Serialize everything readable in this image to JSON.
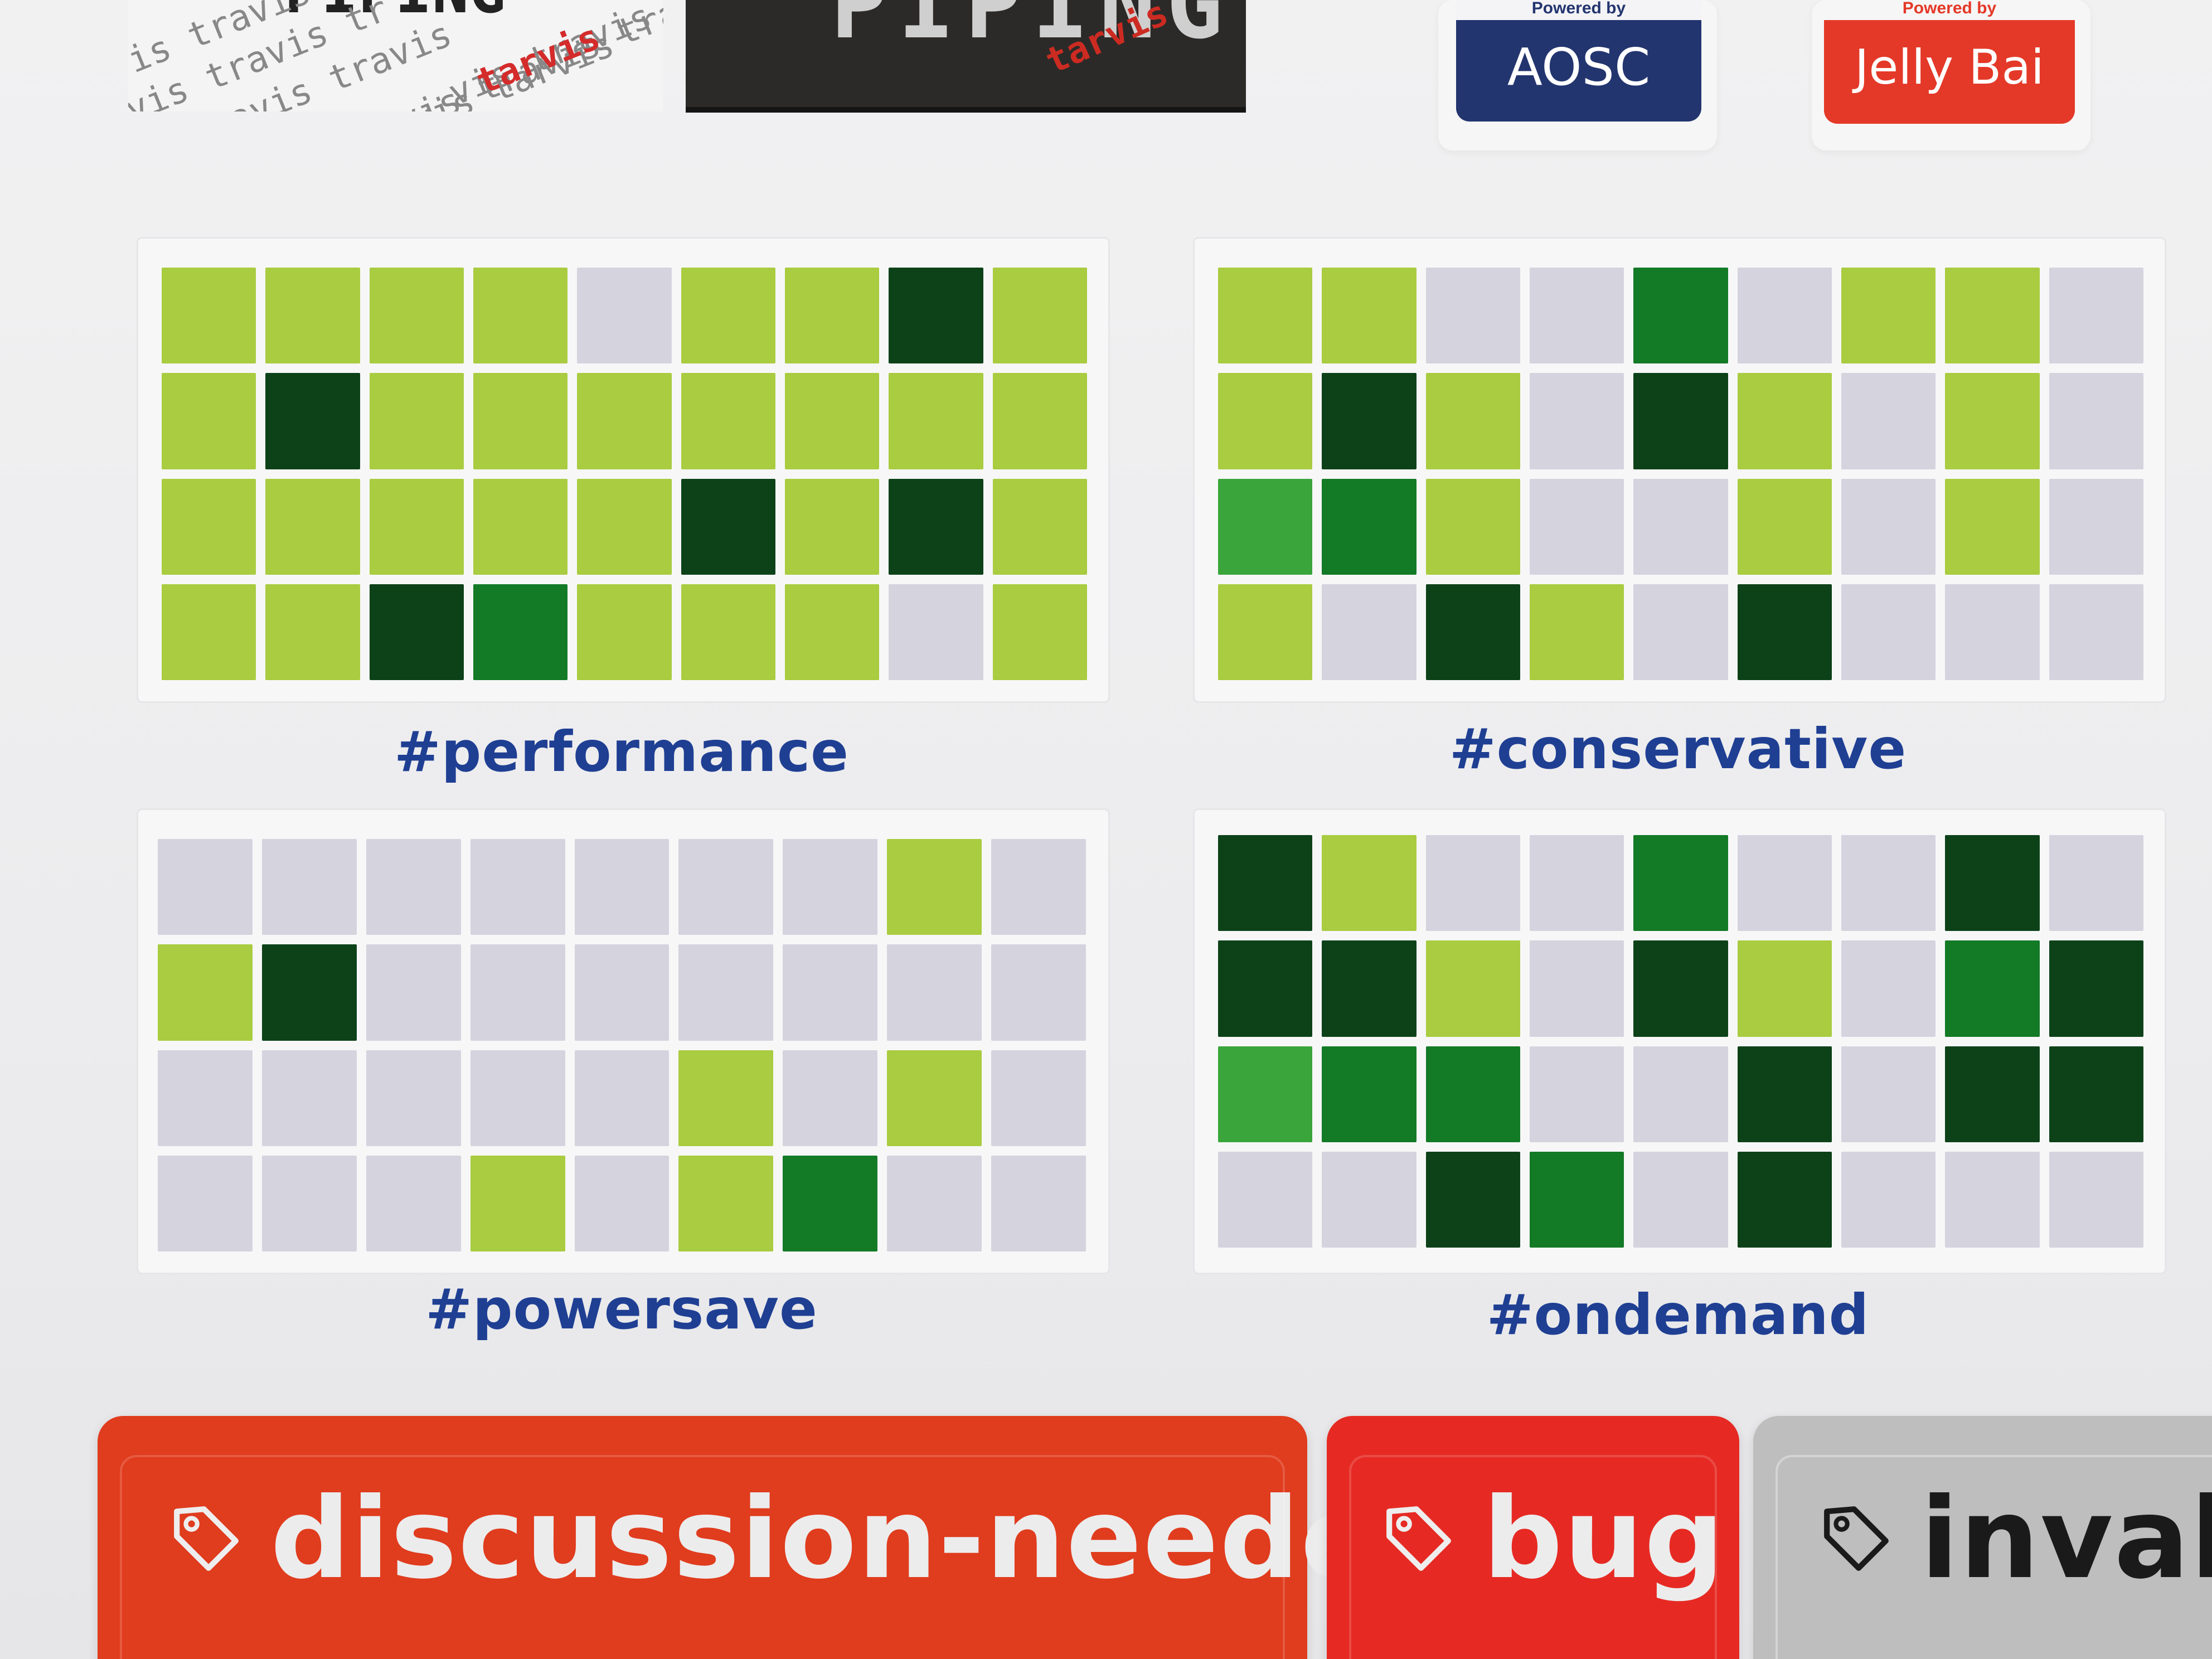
{
  "top_strip": {
    "travis_tile": {
      "words": [
        "is travis",
        "vis travis tr",
        "c travis travis",
        "avis travis tarvis",
        "avis travis tra",
        "vis travis tr"
      ],
      "accent_word": "tarvis",
      "heading_fragment": "PIPING"
    },
    "piping_tile": {
      "title_fragment": "PIPING",
      "accent_word": "tarvis"
    },
    "badges": [
      {
        "powered_by": "Powered by",
        "name": "AOSC",
        "color": "#23356f"
      },
      {
        "powered_by": "Powered by",
        "name": "Jelly Bai",
        "color": "#e43928"
      }
    ]
  },
  "levels": {
    "0": "#d5d3de",
    "1": "#a9cc40",
    "2": "#3aa53a",
    "3": "#137a26",
    "4": "#0d4219"
  },
  "heatmaps": [
    {
      "tag": "#performance",
      "rows": [
        [
          1,
          1,
          1,
          1,
          0,
          1,
          1,
          4,
          1
        ],
        [
          1,
          4,
          1,
          1,
          1,
          1,
          1,
          1,
          1
        ],
        [
          1,
          1,
          1,
          1,
          1,
          4,
          1,
          4,
          1
        ],
        [
          1,
          1,
          4,
          3,
          1,
          1,
          1,
          0,
          1
        ]
      ]
    },
    {
      "tag": "#conservative",
      "rows": [
        [
          1,
          1,
          0,
          0,
          3,
          0,
          1,
          1,
          0
        ],
        [
          1,
          4,
          1,
          0,
          4,
          1,
          0,
          1,
          0
        ],
        [
          2,
          3,
          1,
          0,
          0,
          1,
          0,
          1,
          0
        ],
        [
          1,
          0,
          4,
          1,
          0,
          4,
          0,
          0,
          0
        ]
      ]
    },
    {
      "tag": "#powersave",
      "rows": [
        [
          0,
          0,
          0,
          0,
          0,
          0,
          0,
          1,
          0
        ],
        [
          1,
          4,
          0,
          0,
          0,
          0,
          0,
          0,
          0
        ],
        [
          0,
          0,
          0,
          0,
          0,
          1,
          0,
          1,
          0
        ],
        [
          0,
          0,
          0,
          1,
          0,
          1,
          3,
          0,
          0
        ]
      ]
    },
    {
      "tag": "#ondemand",
      "rows": [
        [
          4,
          1,
          0,
          0,
          3,
          0,
          0,
          4,
          0
        ],
        [
          4,
          4,
          1,
          0,
          4,
          1,
          0,
          3,
          4
        ],
        [
          2,
          3,
          3,
          0,
          0,
          4,
          0,
          4,
          4
        ],
        [
          0,
          0,
          4,
          3,
          0,
          4,
          0,
          0,
          0
        ]
      ]
    }
  ],
  "labels": [
    {
      "text": "discussion-needed",
      "color": "#e03c1e"
    },
    {
      "text": "bug",
      "color": "#e62a23"
    },
    {
      "text": "invalid",
      "color": "#bebebe"
    }
  ]
}
